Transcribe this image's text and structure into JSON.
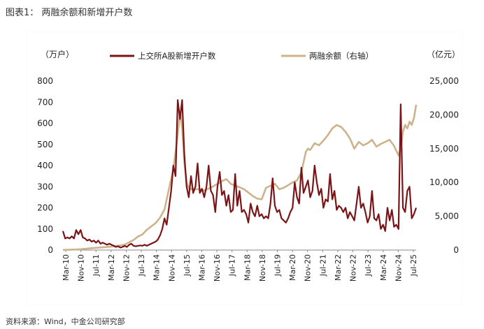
{
  "figure": {
    "title": "图表1： 两融余额和新增开户数",
    "source": "资料来源：Wind，中金公司研究部"
  },
  "chart_data": {
    "type": "line",
    "left_unit": "（万户）",
    "right_unit": "（亿元）",
    "left_axis": {
      "ylim": [
        0,
        800
      ],
      "ticks": [
        "800",
        "700",
        "600",
        "500",
        "400",
        "300",
        "200",
        "100",
        "0"
      ]
    },
    "right_axis": {
      "ylim": [
        0,
        25000
      ],
      "ticks": [
        "25,000",
        "20,000",
        "15,000",
        "10,000",
        "5,000",
        "0"
      ]
    },
    "x_tick_labels": [
      "Mar-10",
      "Nov-10",
      "Jul-11",
      "Mar-12",
      "Nov-12",
      "Jul-13",
      "Mar-14",
      "Nov-14",
      "Jul-15",
      "Mar-16",
      "Nov-16",
      "Jul-17",
      "Mar-18",
      "Nov-18",
      "Jul-19",
      "Mar-20",
      "Nov-20",
      "Jul-21",
      "Mar-22",
      "Nov-22",
      "Jul-23",
      "Mar-24",
      "Nov-24",
      "Jul-25"
    ],
    "colors": {
      "accounts": "#7B1416",
      "margin": "#CDB28C",
      "axis": "#888888"
    },
    "series": [
      {
        "name": "上交所A股新增开户数",
        "axis": "left",
        "points": [
          [
            0,
            90
          ],
          [
            1,
            55
          ],
          [
            2,
            60
          ],
          [
            3,
            55
          ],
          [
            4,
            65
          ],
          [
            5,
            55
          ],
          [
            6,
            95
          ],
          [
            7,
            75
          ],
          [
            8,
            95
          ],
          [
            9,
            60
          ],
          [
            10,
            55
          ],
          [
            11,
            45
          ],
          [
            12,
            50
          ],
          [
            13,
            40
          ],
          [
            14,
            45
          ],
          [
            15,
            35
          ],
          [
            16,
            45
          ],
          [
            17,
            30
          ],
          [
            18,
            35
          ],
          [
            19,
            30
          ],
          [
            20,
            25
          ],
          [
            21,
            30
          ],
          [
            22,
            25
          ],
          [
            23,
            20
          ],
          [
            24,
            15
          ],
          [
            25,
            18
          ],
          [
            26,
            12
          ],
          [
            27,
            15
          ],
          [
            28,
            20
          ],
          [
            29,
            15
          ],
          [
            30,
            25
          ],
          [
            31,
            30
          ],
          [
            32,
            20
          ],
          [
            33,
            18
          ],
          [
            34,
            20
          ],
          [
            35,
            22
          ],
          [
            36,
            20
          ],
          [
            37,
            25
          ],
          [
            38,
            20
          ],
          [
            39,
            25
          ],
          [
            40,
            30
          ],
          [
            41,
            35
          ],
          [
            42,
            40
          ],
          [
            43,
            50
          ],
          [
            44,
            70
          ],
          [
            45,
            100
          ],
          [
            46,
            150
          ],
          [
            47,
            120
          ],
          [
            48,
            200
          ],
          [
            49,
            280
          ],
          [
            50,
            400
          ],
          [
            51,
            350
          ],
          [
            52,
            710
          ],
          [
            53,
            620
          ],
          [
            54,
            710
          ],
          [
            55,
            450
          ],
          [
            56,
            300
          ],
          [
            57,
            250
          ],
          [
            58,
            350
          ],
          [
            59,
            270
          ],
          [
            60,
            300
          ],
          [
            61,
            410
          ],
          [
            62,
            270
          ],
          [
            63,
            290
          ],
          [
            64,
            250
          ],
          [
            65,
            300
          ],
          [
            66,
            400
          ],
          [
            67,
            280
          ],
          [
            68,
            260
          ],
          [
            69,
            180
          ],
          [
            70,
            300
          ],
          [
            71,
            370
          ],
          [
            72,
            260
          ],
          [
            73,
            280
          ],
          [
            74,
            210
          ],
          [
            75,
            260
          ],
          [
            76,
            180
          ],
          [
            77,
            190
          ],
          [
            78,
            360
          ],
          [
            79,
            210
          ],
          [
            80,
            280
          ],
          [
            81,
            180
          ],
          [
            82,
            190
          ],
          [
            83,
            170
          ],
          [
            84,
            130
          ],
          [
            85,
            220
          ],
          [
            86,
            180
          ],
          [
            87,
            160
          ],
          [
            88,
            210
          ],
          [
            89,
            160
          ],
          [
            90,
            170
          ],
          [
            91,
            150
          ],
          [
            92,
            160
          ],
          [
            93,
            150
          ],
          [
            94,
            220
          ],
          [
            95,
            340
          ],
          [
            96,
            210
          ],
          [
            97,
            180
          ],
          [
            98,
            190
          ],
          [
            99,
            150
          ],
          [
            100,
            140
          ],
          [
            101,
            130
          ],
          [
            102,
            150
          ],
          [
            103,
            180
          ],
          [
            104,
            200
          ],
          [
            105,
            320
          ],
          [
            106,
            250
          ],
          [
            107,
            220
          ],
          [
            108,
            390
          ],
          [
            109,
            270
          ],
          [
            110,
            300
          ],
          [
            111,
            330
          ],
          [
            112,
            250
          ],
          [
            113,
            280
          ],
          [
            114,
            400
          ],
          [
            115,
            320
          ],
          [
            116,
            260
          ],
          [
            117,
            290
          ],
          [
            118,
            200
          ],
          [
            119,
            240
          ],
          [
            120,
            230
          ],
          [
            121,
            360
          ],
          [
            122,
            240
          ],
          [
            123,
            280
          ],
          [
            124,
            190
          ],
          [
            125,
            210
          ],
          [
            126,
            200
          ],
          [
            127,
            180
          ],
          [
            128,
            200
          ],
          [
            129,
            150
          ],
          [
            130,
            180
          ],
          [
            131,
            160
          ],
          [
            132,
            140
          ],
          [
            133,
            220
          ],
          [
            134,
            300
          ],
          [
            135,
            200
          ],
          [
            136,
            220
          ],
          [
            137,
            180
          ],
          [
            138,
            130
          ],
          [
            139,
            160
          ],
          [
            140,
            280
          ],
          [
            141,
            150
          ],
          [
            142,
            140
          ],
          [
            143,
            170
          ],
          [
            144,
            100
          ],
          [
            145,
            120
          ],
          [
            146,
            90
          ],
          [
            147,
            200
          ],
          [
            148,
            140
          ],
          [
            149,
            190
          ],
          [
            150,
            110
          ],
          [
            151,
            120
          ],
          [
            152,
            100
          ],
          [
            153,
            690
          ],
          [
            154,
            200
          ],
          [
            155,
            180
          ],
          [
            156,
            280
          ],
          [
            157,
            300
          ],
          [
            158,
            150
          ],
          [
            159,
            170
          ],
          [
            160,
            200
          ]
        ]
      },
      {
        "name": "两融余额（右轴）",
        "axis": "right",
        "points": [
          [
            0,
            20
          ],
          [
            4,
            60
          ],
          [
            8,
            120
          ],
          [
            12,
            250
          ],
          [
            16,
            350
          ],
          [
            20,
            450
          ],
          [
            24,
            600
          ],
          [
            28,
            800
          ],
          [
            32,
            1500
          ],
          [
            34,
            2000
          ],
          [
            36,
            2300
          ],
          [
            38,
            3000
          ],
          [
            40,
            3500
          ],
          [
            42,
            4000
          ],
          [
            44,
            4800
          ],
          [
            46,
            6000
          ],
          [
            48,
            9000
          ],
          [
            50,
            12000
          ],
          [
            51,
            14500
          ],
          [
            52,
            17000
          ],
          [
            53,
            20500
          ],
          [
            54,
            18000
          ],
          [
            55,
            13000
          ],
          [
            56,
            10000
          ],
          [
            57,
            9200
          ],
          [
            58,
            9000
          ],
          [
            60,
            9000
          ],
          [
            62,
            9000
          ],
          [
            64,
            8800
          ],
          [
            66,
            9100
          ],
          [
            68,
            9400
          ],
          [
            70,
            9800
          ],
          [
            72,
            10200
          ],
          [
            74,
            10500
          ],
          [
            76,
            9800
          ],
          [
            78,
            9500
          ],
          [
            80,
            9300
          ],
          [
            82,
            9000
          ],
          [
            84,
            8500
          ],
          [
            86,
            8000
          ],
          [
            88,
            7600
          ],
          [
            90,
            7500
          ],
          [
            92,
            9200
          ],
          [
            94,
            9500
          ],
          [
            96,
            9800
          ],
          [
            98,
            9000
          ],
          [
            100,
            9200
          ],
          [
            102,
            9600
          ],
          [
            104,
            10000
          ],
          [
            106,
            10300
          ],
          [
            108,
            11500
          ],
          [
            110,
            14500
          ],
          [
            111,
            15000
          ],
          [
            112,
            14800
          ],
          [
            114,
            15800
          ],
          [
            116,
            15500
          ],
          [
            118,
            16200
          ],
          [
            120,
            17000
          ],
          [
            122,
            18000
          ],
          [
            124,
            18500
          ],
          [
            126,
            18200
          ],
          [
            128,
            17500
          ],
          [
            130,
            16500
          ],
          [
            132,
            15000
          ],
          [
            134,
            16000
          ],
          [
            136,
            15500
          ],
          [
            138,
            15800
          ],
          [
            140,
            16300
          ],
          [
            142,
            15300
          ],
          [
            144,
            15700
          ],
          [
            146,
            16000
          ],
          [
            148,
            16300
          ],
          [
            150,
            15400
          ],
          [
            152,
            14000
          ],
          [
            153,
            15000
          ],
          [
            154,
            17500
          ],
          [
            155,
            18500
          ],
          [
            156,
            18000
          ],
          [
            157,
            19000
          ],
          [
            158,
            18500
          ],
          [
            159,
            19500
          ],
          [
            160,
            21500
          ]
        ]
      }
    ]
  }
}
